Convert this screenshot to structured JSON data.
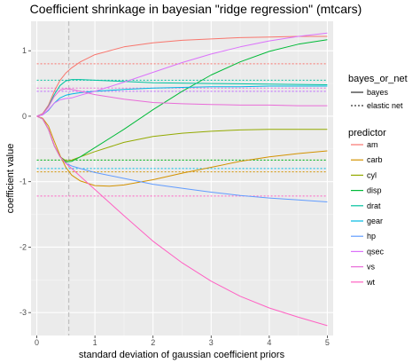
{
  "chart_data": {
    "type": "line",
    "title": "Coefficient shrinkage in bayesian \"ridge regression\" (mtcars)",
    "xlabel": "standard deviation of gaussian coefficient priors",
    "ylabel": "coefficient value",
    "xlim": [
      -0.1,
      5.1
    ],
    "ylim": [
      -3.35,
      1.45
    ],
    "xticks": [
      0,
      1,
      2,
      3,
      4,
      5
    ],
    "yticks": [
      -3,
      -2,
      -1,
      0,
      1
    ],
    "grid": true,
    "vline": {
      "x": 0.55,
      "style": "dashed",
      "color": "#bfbfbf"
    },
    "legend_linetype": {
      "title": "bayes_or_net",
      "entries": [
        {
          "label": "bayes",
          "style": "solid"
        },
        {
          "label": "elastic net",
          "style": "dotted"
        }
      ]
    },
    "legend_color": {
      "title": "predictor",
      "entries": [
        {
          "label": "am",
          "color": "#F8766D"
        },
        {
          "label": "carb",
          "color": "#D39200"
        },
        {
          "label": "cyl",
          "color": "#93AA00"
        },
        {
          "label": "disp",
          "color": "#00BA38"
        },
        {
          "label": "drat",
          "color": "#00C19F"
        },
        {
          "label": "gear",
          "color": "#00B9E3"
        },
        {
          "label": "hp",
          "color": "#619CFF"
        },
        {
          "label": "qsec",
          "color": "#DB72FB"
        },
        {
          "label": "vs",
          "color": "#E96CD8"
        },
        {
          "label": "wt",
          "color": "#FF61C3"
        }
      ]
    },
    "series": [
      {
        "predictor": "am",
        "type": "bayes",
        "color": "#F8766D",
        "x": [
          0,
          0.1,
          0.2,
          0.3,
          0.4,
          0.5,
          0.6,
          0.75,
          1,
          1.5,
          2,
          2.5,
          3,
          3.5,
          4,
          4.5,
          5
        ],
        "y": [
          0,
          0.04,
          0.17,
          0.38,
          0.55,
          0.66,
          0.74,
          0.83,
          0.94,
          1.06,
          1.12,
          1.16,
          1.18,
          1.2,
          1.21,
          1.22,
          1.22
        ]
      },
      {
        "predictor": "carb",
        "type": "bayes",
        "color": "#D39200",
        "x": [
          0,
          0.1,
          0.2,
          0.3,
          0.4,
          0.5,
          0.6,
          0.75,
          1,
          1.25,
          1.5,
          2,
          2.5,
          3,
          3.5,
          4,
          4.5,
          5
        ],
        "y": [
          0,
          -0.03,
          -0.15,
          -0.38,
          -0.6,
          -0.78,
          -0.9,
          -0.99,
          -1.06,
          -1.07,
          -1.05,
          -0.97,
          -0.87,
          -0.78,
          -0.69,
          -0.62,
          -0.57,
          -0.53
        ]
      },
      {
        "predictor": "cyl",
        "type": "bayes",
        "color": "#93AA00",
        "x": [
          0,
          0.1,
          0.2,
          0.3,
          0.4,
          0.5,
          0.6,
          0.75,
          1,
          1.5,
          2,
          2.5,
          3,
          3.5,
          4,
          4.5,
          5
        ],
        "y": [
          0,
          -0.04,
          -0.2,
          -0.45,
          -0.62,
          -0.68,
          -0.67,
          -0.62,
          -0.54,
          -0.4,
          -0.31,
          -0.26,
          -0.23,
          -0.21,
          -0.2,
          -0.2,
          -0.2
        ]
      },
      {
        "predictor": "disp",
        "type": "bayes",
        "color": "#00BA38",
        "x": [
          0,
          0.1,
          0.2,
          0.3,
          0.4,
          0.5,
          0.6,
          0.75,
          1,
          1.5,
          2,
          2.5,
          3,
          3.5,
          4,
          4.5,
          5
        ],
        "y": [
          0,
          -0.04,
          -0.2,
          -0.45,
          -0.62,
          -0.7,
          -0.69,
          -0.62,
          -0.48,
          -0.2,
          0.1,
          0.38,
          0.63,
          0.83,
          0.99,
          1.1,
          1.17
        ]
      },
      {
        "predictor": "drat",
        "type": "bayes",
        "color": "#00C19F",
        "x": [
          0,
          0.1,
          0.2,
          0.3,
          0.4,
          0.5,
          0.6,
          0.75,
          1,
          1.5,
          2,
          3,
          4,
          5
        ],
        "y": [
          0,
          0.03,
          0.15,
          0.33,
          0.47,
          0.54,
          0.56,
          0.56,
          0.55,
          0.53,
          0.51,
          0.5,
          0.49,
          0.48
        ]
      },
      {
        "predictor": "gear",
        "type": "bayes",
        "color": "#00B9E3",
        "x": [
          0,
          0.1,
          0.2,
          0.3,
          0.4,
          0.5,
          0.6,
          0.75,
          1,
          1.5,
          2,
          2.5,
          3,
          3.5,
          4,
          4.5,
          5
        ],
        "y": [
          0,
          0.02,
          0.09,
          0.2,
          0.28,
          0.32,
          0.34,
          0.36,
          0.38,
          0.41,
          0.43,
          0.44,
          0.45,
          0.45,
          0.46,
          0.46,
          0.46
        ]
      },
      {
        "predictor": "hp",
        "type": "bayes",
        "color": "#619CFF",
        "x": [
          0,
          0.1,
          0.2,
          0.3,
          0.4,
          0.5,
          0.6,
          0.75,
          1,
          1.5,
          2,
          2.5,
          3,
          3.5,
          4,
          4.5,
          5
        ],
        "y": [
          0,
          -0.04,
          -0.2,
          -0.45,
          -0.62,
          -0.72,
          -0.76,
          -0.8,
          -0.86,
          -0.95,
          -1.04,
          -1.1,
          -1.16,
          -1.21,
          -1.25,
          -1.28,
          -1.31
        ]
      },
      {
        "predictor": "qsec",
        "type": "bayes",
        "color": "#DB72FB",
        "x": [
          0,
          0.1,
          0.2,
          0.3,
          0.4,
          0.5,
          0.6,
          0.75,
          1,
          1.5,
          2,
          2.5,
          3,
          3.5,
          4,
          4.5,
          5
        ],
        "y": [
          0,
          0.02,
          0.1,
          0.2,
          0.25,
          0.27,
          0.28,
          0.32,
          0.38,
          0.52,
          0.67,
          0.82,
          0.95,
          1.06,
          1.15,
          1.22,
          1.27
        ]
      },
      {
        "predictor": "vs",
        "type": "bayes",
        "color": "#E96CD8",
        "x": [
          0,
          0.1,
          0.2,
          0.3,
          0.4,
          0.5,
          0.6,
          0.75,
          1,
          1.5,
          2,
          2.5,
          3,
          3.5,
          4,
          4.5,
          5
        ],
        "y": [
          0,
          0.03,
          0.14,
          0.3,
          0.4,
          0.42,
          0.41,
          0.38,
          0.33,
          0.26,
          0.21,
          0.19,
          0.18,
          0.17,
          0.17,
          0.16,
          0.16
        ]
      },
      {
        "predictor": "wt",
        "type": "bayes",
        "color": "#FF61C3",
        "x": [
          0,
          0.1,
          0.2,
          0.3,
          0.4,
          0.5,
          0.6,
          0.75,
          1,
          1.5,
          2,
          2.5,
          3,
          3.5,
          4,
          4.5,
          5
        ],
        "y": [
          0,
          -0.04,
          -0.2,
          -0.45,
          -0.62,
          -0.72,
          -0.8,
          -0.92,
          -1.12,
          -1.52,
          -1.91,
          -2.24,
          -2.52,
          -2.75,
          -2.93,
          -3.07,
          -3.2
        ]
      },
      {
        "predictor": "am",
        "type": "elastic net",
        "color": "#F8766D",
        "x": [
          0,
          5
        ],
        "y": [
          0.8,
          0.8
        ]
      },
      {
        "predictor": "carb",
        "type": "elastic net",
        "color": "#D39200",
        "x": [
          0,
          5
        ],
        "y": [
          -0.85,
          -0.85
        ]
      },
      {
        "predictor": "cyl",
        "type": "elastic net",
        "color": "#93AA00",
        "x": [
          0,
          5
        ],
        "y": [
          -0.67,
          -0.67
        ]
      },
      {
        "predictor": "disp",
        "type": "elastic net",
        "color": "#00BA38",
        "x": [
          0,
          5
        ],
        "y": [
          -0.67,
          -0.67
        ]
      },
      {
        "predictor": "drat",
        "type": "elastic net",
        "color": "#00C19F",
        "x": [
          0,
          5
        ],
        "y": [
          0.55,
          0.55
        ]
      },
      {
        "predictor": "gear",
        "type": "elastic net",
        "color": "#00B9E3",
        "x": [
          0,
          5
        ],
        "y": [
          -0.8,
          -0.8
        ]
      },
      {
        "predictor": "hp",
        "type": "elastic net",
        "color": "#619CFF",
        "x": [
          0,
          5
        ],
        "y": [
          0.38,
          0.38
        ]
      },
      {
        "predictor": "qsec",
        "type": "elastic net",
        "color": "#DB72FB",
        "x": [
          0,
          5
        ],
        "y": [
          0.38,
          0.38
        ]
      },
      {
        "predictor": "vs",
        "type": "elastic net",
        "color": "#E96CD8",
        "x": [
          0,
          5
        ],
        "y": [
          0.43,
          0.43
        ]
      },
      {
        "predictor": "wt",
        "type": "elastic net",
        "color": "#FF61C3",
        "x": [
          0,
          5
        ],
        "y": [
          -1.22,
          -1.22
        ]
      }
    ]
  }
}
